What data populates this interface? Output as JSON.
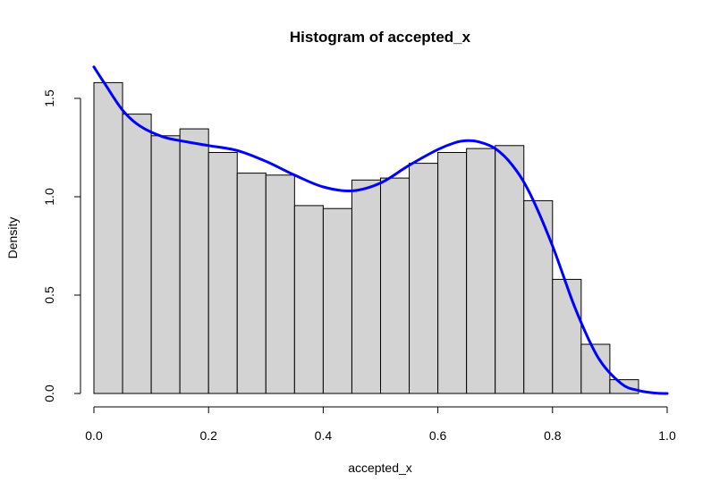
{
  "chart_data": {
    "type": "bar",
    "title": "Histogram of accepted_x",
    "xlabel": "accepted_x",
    "ylabel": "Density",
    "xlim": [
      0,
      1
    ],
    "ylim": [
      0,
      1.65
    ],
    "grid": false,
    "colors": {
      "bar_fill": "#d3d3d3",
      "bar_stroke": "#000000",
      "curve": "#0000ff",
      "background": "#ffffff"
    },
    "x_ticks": [
      {
        "value": 0.0,
        "label": "0.0"
      },
      {
        "value": 0.2,
        "label": "0.2"
      },
      {
        "value": 0.4,
        "label": "0.4"
      },
      {
        "value": 0.6,
        "label": "0.6"
      },
      {
        "value": 0.8,
        "label": "0.8"
      },
      {
        "value": 1.0,
        "label": "1.0"
      }
    ],
    "y_ticks": [
      {
        "value": 0.0,
        "label": "0.0"
      },
      {
        "value": 0.5,
        "label": "0.5"
      },
      {
        "value": 1.0,
        "label": "1.0"
      },
      {
        "value": 1.5,
        "label": "1.5"
      }
    ],
    "bins": [
      {
        "x0": 0.0,
        "x1": 0.05,
        "density": 1.58
      },
      {
        "x0": 0.05,
        "x1": 0.1,
        "density": 1.42
      },
      {
        "x0": 0.1,
        "x1": 0.15,
        "density": 1.31
      },
      {
        "x0": 0.15,
        "x1": 0.2,
        "density": 1.345
      },
      {
        "x0": 0.2,
        "x1": 0.25,
        "density": 1.225
      },
      {
        "x0": 0.25,
        "x1": 0.3,
        "density": 1.12
      },
      {
        "x0": 0.3,
        "x1": 0.35,
        "density": 1.11
      },
      {
        "x0": 0.35,
        "x1": 0.4,
        "density": 0.955
      },
      {
        "x0": 0.4,
        "x1": 0.45,
        "density": 0.94
      },
      {
        "x0": 0.45,
        "x1": 0.5,
        "density": 1.085
      },
      {
        "x0": 0.5,
        "x1": 0.55,
        "density": 1.095
      },
      {
        "x0": 0.55,
        "x1": 0.6,
        "density": 1.17
      },
      {
        "x0": 0.6,
        "x1": 0.65,
        "density": 1.225
      },
      {
        "x0": 0.65,
        "x1": 0.7,
        "density": 1.245
      },
      {
        "x0": 0.7,
        "x1": 0.75,
        "density": 1.26
      },
      {
        "x0": 0.75,
        "x1": 0.8,
        "density": 0.98
      },
      {
        "x0": 0.8,
        "x1": 0.85,
        "density": 0.58
      },
      {
        "x0": 0.85,
        "x1": 0.9,
        "density": 0.25
      },
      {
        "x0": 0.9,
        "x1": 0.95,
        "density": 0.07
      }
    ],
    "curve": {
      "x": [
        0.0,
        0.02,
        0.05,
        0.08,
        0.12,
        0.16,
        0.2,
        0.25,
        0.3,
        0.35,
        0.4,
        0.45,
        0.5,
        0.55,
        0.6,
        0.63,
        0.65,
        0.67,
        0.7,
        0.73,
        0.76,
        0.8,
        0.84,
        0.88,
        0.92,
        0.95,
        0.98,
        1.0
      ],
      "y": [
        1.66,
        1.57,
        1.44,
        1.36,
        1.305,
        1.28,
        1.26,
        1.235,
        1.18,
        1.11,
        1.05,
        1.03,
        1.07,
        1.16,
        1.24,
        1.275,
        1.285,
        1.28,
        1.245,
        1.16,
        1.02,
        0.75,
        0.43,
        0.18,
        0.05,
        0.015,
        0.002,
        0.0
      ]
    }
  }
}
